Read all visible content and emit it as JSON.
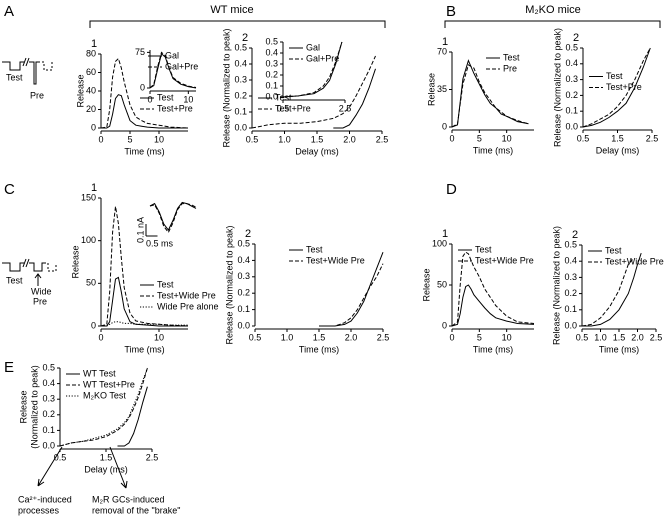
{
  "panel_labels": [
    "A",
    "B",
    "C",
    "D",
    "E"
  ],
  "group_titles": [
    "WT mice",
    "M₂KO mice"
  ],
  "schematics": [
    {
      "texts": [
        "Test",
        "Pre"
      ]
    },
    {
      "texts": [
        "Test",
        "Wide",
        "Pre"
      ]
    }
  ],
  "annotations": [
    [
      "Ca²⁺-induced",
      "processes"
    ],
    [
      "M₂R GCs-induced",
      "removal of the \"brake\""
    ]
  ],
  "chart_data": [
    {
      "type": "line",
      "label": "1",
      "x_label": "Time (ms)",
      "y_label": "Release",
      "legend": "lower right",
      "xlim": [
        0,
        15
      ],
      "ylim": [
        0,
        80
      ],
      "xticks": [
        0,
        5,
        10
      ],
      "yticks": [
        0,
        20,
        40,
        60,
        80
      ],
      "x": [
        0,
        1,
        1.5,
        2,
        2.5,
        3,
        3.5,
        4,
        5,
        6,
        7,
        8,
        10,
        12,
        15
      ],
      "series": [
        {
          "name": "Test",
          "color": "#000000",
          "dash": "solid",
          "values": [
            0,
            0,
            2,
            15,
            32,
            36,
            35,
            25,
            8,
            3,
            2,
            1,
            0,
            0,
            0
          ]
        },
        {
          "name": "Test+Pre",
          "color": "#000000",
          "dash": "dashed",
          "values": [
            0,
            1,
            20,
            55,
            72,
            75,
            65,
            50,
            25,
            12,
            8,
            5,
            3,
            1,
            0
          ]
        }
      ]
    },
    {
      "type": "line",
      "legend": "upper right",
      "xlim": [
        0,
        12
      ],
      "ylim": [
        0,
        80
      ],
      "xticks": [
        0,
        10
      ],
      "yticks": [
        0,
        75
      ],
      "x": [
        0,
        1,
        2,
        3,
        4,
        5,
        6,
        8,
        10,
        12
      ],
      "series": [
        {
          "name": "Gal",
          "color": "#000000",
          "dash": "solid",
          "values": [
            0,
            5,
            40,
            72,
            65,
            40,
            20,
            8,
            3,
            0
          ]
        },
        {
          "name": "Gal+Pre",
          "color": "#000000",
          "dash": "dashed",
          "values": [
            0,
            8,
            45,
            75,
            68,
            42,
            22,
            10,
            4,
            1
          ]
        }
      ]
    },
    {
      "type": "line",
      "label": "2",
      "x_label": "Delay (ms)",
      "y_label": "Release (Normalized to peak)",
      "legend": "lower left",
      "xlim": [
        0.5,
        2.5
      ],
      "ylim": [
        0,
        0.5
      ],
      "xticks": [
        0.5,
        {
          "value": 1,
          "label": "1.0"
        },
        1.5,
        {
          "value": 2,
          "label": "2.0"
        },
        2.5
      ],
      "yticks": [
        {
          "value": 0,
          "label": "0.0"
        },
        0.1,
        0.2,
        0.3,
        0.4,
        0.5
      ],
      "x": [
        0.5,
        0.75,
        1.0,
        1.25,
        1.5,
        1.75,
        1.9,
        2.0,
        2.1,
        2.2,
        2.3,
        2.4
      ],
      "series": [
        {
          "name": "Test",
          "color": "#000000",
          "dash": "solid",
          "values": [
            null,
            null,
            null,
            null,
            null,
            0,
            0,
            0.02,
            0.08,
            0.15,
            0.25,
            0.37
          ]
        },
        {
          "name": "Test+Pre",
          "color": "#000000",
          "dash": "dashed",
          "values": [
            0,
            0.02,
            0.03,
            0.03,
            0.04,
            0.06,
            0.09,
            0.13,
            0.2,
            0.28,
            0.36,
            0.45
          ]
        }
      ]
    },
    {
      "type": "line",
      "legend": "upper left",
      "xlim": [
        0.5,
        2.5
      ],
      "ylim": [
        0,
        0.5
      ],
      "xticks": [
        0.5,
        2.5
      ],
      "yticks": [
        {
          "value": 0,
          "label": "0.0"
        },
        0.1,
        0.2,
        0.3,
        0.4,
        0.5
      ],
      "x": [
        0.5,
        1,
        1.5,
        1.8,
        2.0,
        2.2,
        2.4
      ],
      "series": [
        {
          "name": "Gal",
          "color": "#000000",
          "dash": "solid",
          "values": [
            0,
            0.01,
            0.03,
            0.08,
            0.15,
            0.3,
            0.5
          ]
        },
        {
          "name": "Gal+Pre",
          "color": "#000000",
          "dash": "dashed",
          "values": [
            0,
            0.01,
            0.04,
            0.1,
            0.18,
            0.32,
            0.5
          ]
        }
      ]
    },
    {
      "type": "line",
      "label": "1",
      "x_label": "Time (ms)",
      "y_label": "Release",
      "legend": "upper right",
      "xlim": [
        0,
        15
      ],
      "ylim": [
        0,
        70
      ],
      "xticks": [
        0,
        5,
        10
      ],
      "yticks": [
        0,
        35,
        70
      ],
      "x": [
        0,
        1,
        2,
        3,
        4,
        5,
        6,
        7,
        8,
        9,
        10,
        12,
        14
      ],
      "series": [
        {
          "name": "Test",
          "color": "#000000",
          "dash": "solid",
          "values": [
            0,
            2,
            45,
            62,
            50,
            40,
            30,
            22,
            18,
            12,
            10,
            5,
            3
          ]
        },
        {
          "name": "Pre",
          "color": "#000000",
          "dash": "dashed",
          "values": [
            0,
            3,
            40,
            58,
            55,
            42,
            32,
            25,
            18,
            14,
            10,
            6,
            3
          ]
        }
      ]
    },
    {
      "type": "line",
      "label": "2",
      "x_label": "Delay (ms)",
      "y_label": "Release (Normalized to peak)",
      "legend": "center left",
      "xlim": [
        0.5,
        2.5
      ],
      "ylim": [
        0,
        0.5
      ],
      "xticks": [
        0.5,
        1.5,
        2.5
      ],
      "yticks": [
        {
          "value": 0,
          "label": "0.0"
        },
        0.1,
        0.2,
        0.3,
        0.4,
        0.5
      ],
      "x": [
        0.5,
        0.75,
        1,
        1.25,
        1.5,
        1.75,
        2,
        2.25,
        2.45
      ],
      "series": [
        {
          "name": "Test",
          "color": "#000000",
          "dash": "solid",
          "values": [
            0,
            0.01,
            0.03,
            0.06,
            0.1,
            0.15,
            0.25,
            0.38,
            0.5
          ]
        },
        {
          "name": "Test+Pre",
          "color": "#000000",
          "dash": "dashed",
          "values": [
            0,
            0.02,
            0.05,
            0.08,
            0.13,
            0.2,
            0.3,
            0.42,
            0.5
          ]
        }
      ]
    },
    {
      "type": "line",
      "label": "1",
      "x_label": "Time (ms)",
      "y_label": "Release",
      "legend": "lower right",
      "xlim": [
        0,
        15
      ],
      "ylim": [
        0,
        150
      ],
      "xticks": [
        0,
        10
      ],
      "yticks": [
        0,
        50,
        100,
        150
      ],
      "x": [
        0,
        1,
        1.5,
        2,
        2.5,
        3,
        3.5,
        4,
        5,
        6,
        8,
        10,
        12,
        15
      ],
      "series": [
        {
          "name": "Test",
          "color": "#000000",
          "dash": "solid",
          "values": [
            0,
            0,
            5,
            30,
            55,
            57,
            40,
            20,
            5,
            2,
            1,
            0,
            0,
            0
          ]
        },
        {
          "name": "Test+Wide Pre",
          "color": "#000000",
          "dash": "dashed",
          "values": [
            0,
            2,
            40,
            110,
            140,
            120,
            80,
            45,
            15,
            6,
            3,
            2,
            1,
            0
          ]
        },
        {
          "name": "Wide Pre alone",
          "color": "#000000",
          "dash": "dotted",
          "values": [
            0,
            0,
            2,
            4,
            5,
            5,
            4,
            3,
            3,
            2,
            2,
            2,
            1,
            1
          ]
        }
      ]
    },
    {
      "type": "line",
      "xlim": [
        0,
        2
      ],
      "ylim": [
        -0.25,
        0.05
      ],
      "scale_bars": [
        {
          "value": 0.1,
          "label": "0.1 nA",
          "axis": "y"
        },
        {
          "value": 0.5,
          "label": "0.5 ms",
          "axis": "x"
        }
      ],
      "x": [
        0,
        0.2,
        0.4,
        0.6,
        0.8,
        1.0,
        1.2,
        1.4,
        1.6,
        1.8,
        2.0
      ],
      "series": [
        {
          "color": "#000000",
          "dash": "solid",
          "values": [
            0,
            0.02,
            -0.05,
            -0.15,
            -0.2,
            -0.12,
            -0.02,
            0.03,
            0.02,
            0,
            -0.02
          ]
        },
        {
          "color": "#000000",
          "dash": "dashed",
          "values": [
            0,
            0.01,
            -0.06,
            -0.17,
            -0.22,
            -0.14,
            -0.03,
            0.02,
            0.02,
            0.01,
            -0.01
          ]
        }
      ]
    },
    {
      "type": "line",
      "label": "2",
      "x_label": "Time (ms)",
      "y_label": "Release (Normalized to peak)",
      "legend": "upper center",
      "xlim": [
        0.5,
        2.5
      ],
      "ylim": [
        0,
        0.5
      ],
      "xticks": [
        0.5,
        {
          "value": 1,
          "label": "1.0"
        },
        1.5,
        {
          "value": 2,
          "label": "2.0"
        },
        2.5
      ],
      "yticks": [
        {
          "value": 0,
          "label": "0.0"
        },
        0.1,
        0.2,
        0.3,
        0.4,
        0.5
      ],
      "x": [
        1.5,
        1.75,
        1.9,
        2.0,
        2.1,
        2.2,
        2.3,
        2.4,
        2.5
      ],
      "series": [
        {
          "name": "Test",
          "color": "#000000",
          "dash": "solid",
          "values": [
            0,
            0,
            0.01,
            0.03,
            0.08,
            0.15,
            0.25,
            0.35,
            0.45
          ]
        },
        {
          "name": "Test+Wide Pre",
          "color": "#000000",
          "dash": "dashed",
          "values": [
            0,
            0,
            0.02,
            0.05,
            0.1,
            0.17,
            0.24,
            0.3,
            0.38
          ]
        }
      ]
    },
    {
      "type": "line",
      "label": "1",
      "x_label": "Time (ms)",
      "y_label": "Release",
      "legend": "upper left",
      "xlim": [
        0,
        15
      ],
      "ylim": [
        0,
        100
      ],
      "xticks": [
        0,
        5,
        10
      ],
      "yticks": [
        0,
        50,
        100
      ],
      "x": [
        0,
        1,
        1.5,
        2,
        2.5,
        3,
        3.5,
        4,
        5,
        6,
        7,
        8,
        10,
        12,
        15
      ],
      "series": [
        {
          "name": "Test",
          "color": "#000000",
          "dash": "solid",
          "values": [
            0,
            2,
            15,
            35,
            48,
            50,
            45,
            38,
            30,
            22,
            15,
            10,
            6,
            3,
            2
          ]
        },
        {
          "name": "Test+Wide Pre",
          "color": "#000000",
          "dash": "dashed",
          "values": [
            0,
            5,
            50,
            85,
            90,
            88,
            80,
            72,
            60,
            45,
            35,
            25,
            12,
            5,
            3
          ]
        }
      ]
    },
    {
      "type": "line",
      "label": "2",
      "x_label": "Time (ms)",
      "y_label": "Release (Normalized to peak)",
      "legend": "upper left",
      "xlim": [
        0.5,
        2.5
      ],
      "ylim": [
        0,
        0.5
      ],
      "xticks": [
        0.5,
        {
          "value": 1,
          "label": "1.0"
        },
        1.5,
        {
          "value": 2,
          "label": "2.0"
        },
        2.5
      ],
      "yticks": [
        {
          "value": 0,
          "label": "0.0"
        },
        0.1,
        0.2,
        0.3,
        0.4,
        0.5
      ],
      "x": [
        0.5,
        0.75,
        1,
        1.25,
        1.5,
        1.75,
        1.9,
        2.0,
        2.1
      ],
      "series": [
        {
          "name": "Test",
          "color": "#000000",
          "dash": "solid",
          "values": [
            0,
            0,
            0.01,
            0.04,
            0.1,
            0.2,
            0.3,
            0.38,
            0.45
          ]
        },
        {
          "name": "Test+Wide Pre",
          "color": "#000000",
          "dash": "dashed",
          "values": [
            0,
            0.01,
            0.05,
            0.12,
            0.22,
            0.38,
            0.42,
            null,
            null
          ]
        }
      ]
    },
    {
      "type": "line",
      "x_label": "Delay (ms)",
      "y_label": [
        "Release",
        "(Normalized to peak)"
      ],
      "legend": "upper left",
      "xlim": [
        0.5,
        2.5
      ],
      "ylim": [
        0,
        0.5
      ],
      "xticks": [
        0.5,
        1.5,
        2.5
      ],
      "yticks": [
        {
          "value": 0,
          "label": "0.0"
        },
        0.1,
        0.2,
        0.3,
        0.4,
        0.5
      ],
      "x": [
        0.5,
        0.75,
        1,
        1.25,
        1.5,
        1.75,
        1.9,
        2.0,
        2.1,
        2.2,
        2.3,
        2.4
      ],
      "series": [
        {
          "name": "WT Test",
          "color": "#000000",
          "dash": "solid",
          "values": [
            null,
            null,
            null,
            null,
            null,
            0,
            0,
            0.02,
            0.08,
            0.17,
            0.28,
            0.38
          ]
        },
        {
          "name": "WT Test+Pre",
          "color": "#000000",
          "dash": "dashed",
          "values": [
            0,
            0.02,
            0.03,
            0.04,
            0.06,
            0.1,
            0.14,
            0.18,
            0.24,
            0.31,
            0.4,
            0.5
          ]
        },
        {
          "name": "M₂KO Test",
          "color": "#000000",
          "dash": "dotted",
          "values": [
            0,
            0.02,
            0.03,
            0.05,
            0.07,
            0.11,
            0.15,
            0.19,
            0.26,
            0.33,
            0.42,
            0.5
          ]
        }
      ]
    }
  ]
}
